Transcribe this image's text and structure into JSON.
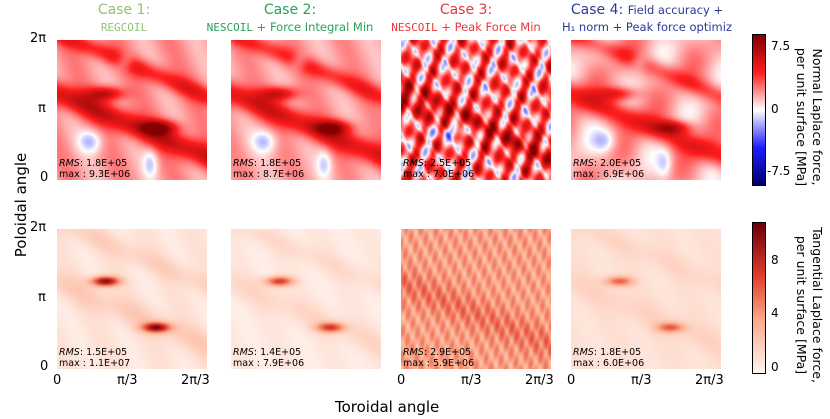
{
  "colors": {
    "case1": "#92c36b",
    "case2": "#2aa05a",
    "case3": "#e8363a",
    "case4": "#2c3a96"
  },
  "chart_data": {
    "type": "heatmap",
    "xlabel": "Toroidal angle",
    "ylabel": "Poloidal angle",
    "x_ticks": [
      "0",
      "π/3",
      "2π/3"
    ],
    "y_ticks": [
      "0",
      "π",
      "2π"
    ],
    "xlim": [
      0,
      2.0944
    ],
    "ylim": [
      0,
      6.2832
    ],
    "cases": [
      {
        "title": "Case 1:",
        "code": "REGCOIL",
        "suffix": "",
        "line2": ""
      },
      {
        "title": "Case 2:",
        "code": "NESCOIL",
        "suffix": " + Force Integral Min",
        "line2": ""
      },
      {
        "title": "Case 3:",
        "code": "NESCOIL",
        "suffix": " + Peak Force Min",
        "line2": ""
      },
      {
        "title": "Case 4:",
        "code": "",
        "suffix": "Field accuracy +",
        "line2": "H₁ norm + Peak force optimiz"
      }
    ],
    "rows": [
      {
        "quantity": "normal",
        "colorbar_label_line1": "Normal Laplace force,",
        "colorbar_label_line2": "per unit surface [MPa]",
        "colorbar_range": [
          -8.5,
          8.5
        ],
        "colorbar_ticks": [
          "7.5",
          "0",
          "-7.5"
        ],
        "colorbar_tick_values": [
          7.5,
          0,
          -7.5
        ],
        "stats": [
          {
            "rms": "1.8E+05",
            "max": "9.3E+06"
          },
          {
            "rms": "1.8E+05",
            "max": "8.7E+06"
          },
          {
            "rms": "2.5E+05",
            "max": "7.0E+06"
          },
          {
            "rms": "2.0E+05",
            "max": "6.9E+06"
          }
        ]
      },
      {
        "quantity": "tangential",
        "colorbar_label_line1": "Tangential Laplace force,",
        "colorbar_label_line2": "per unit surface [MPa]",
        "colorbar_range": [
          0,
          11
        ],
        "colorbar_ticks": [
          "8",
          "4",
          "0"
        ],
        "colorbar_tick_values": [
          8,
          4,
          0
        ],
        "stats": [
          {
            "rms": "1.5E+05",
            "max": "1.1E+07"
          },
          {
            "rms": "1.4E+05",
            "max": "7.9E+06"
          },
          {
            "rms": "2.9E+05",
            "max": "5.9E+06"
          },
          {
            "rms": "1.8E+05",
            "max": "6.0E+06"
          }
        ]
      }
    ],
    "stat_labels": {
      "rms": "RMS",
      "max": "max"
    }
  }
}
